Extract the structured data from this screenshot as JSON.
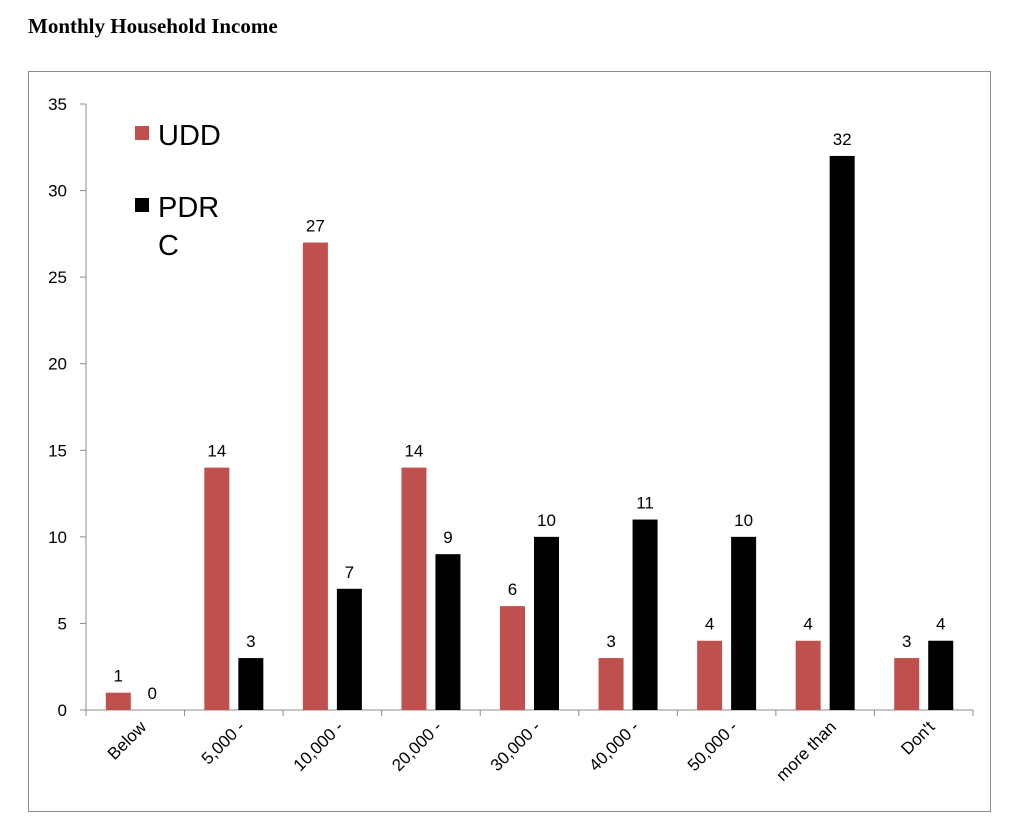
{
  "title": "Monthly Household Income",
  "chart_data": {
    "type": "bar",
    "title": "Monthly Household Income",
    "xlabel": "",
    "ylabel": "",
    "ylim": [
      0,
      35
    ],
    "yticks": [
      0,
      5,
      10,
      15,
      20,
      25,
      30,
      35
    ],
    "categories": [
      "Below",
      "5,000 -",
      "10,000 -",
      "20,000 -",
      "30,000 -",
      "40,000 -",
      "50,000 -",
      "more than",
      "Don't"
    ],
    "series": [
      {
        "name": "UDD",
        "legend_lines": [
          "UDD"
        ],
        "color": "#c0504d",
        "values": [
          1,
          14,
          27,
          14,
          6,
          3,
          4,
          4,
          3
        ]
      },
      {
        "name": "PDRC",
        "legend_lines": [
          "PDR",
          "C"
        ],
        "color": "#000000",
        "values": [
          0,
          3,
          7,
          9,
          10,
          11,
          10,
          32,
          4
        ]
      }
    ],
    "legend_position": "top-left",
    "grid": false
  }
}
